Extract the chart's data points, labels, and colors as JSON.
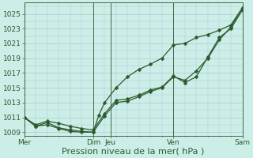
{
  "bg_color": "#cceee8",
  "grid_color": "#aacccc",
  "line_color": "#2d5a2d",
  "marker_color": "#2d5a2d",
  "xlabel": "Pression niveau de la mer( hPa )",
  "xlabel_fontsize": 8,
  "ylim": [
    1008.5,
    1026.5
  ],
  "yticks": [
    1009,
    1011,
    1013,
    1015,
    1017,
    1019,
    1021,
    1023,
    1025
  ],
  "ytick_fontsize": 6.5,
  "xtick_labels": [
    "Mer",
    "Dim",
    "Jeu",
    "Ven",
    "Sam"
  ],
  "xtick_positions": [
    0,
    6,
    7.5,
    13,
    19
  ],
  "x_total": 19,
  "series1_x": [
    0,
    1,
    2,
    3,
    4,
    5,
    6,
    7,
    8,
    9,
    10,
    11,
    12,
    13,
    14,
    15,
    16,
    17,
    18,
    19
  ],
  "series1_y": [
    1011.0,
    1010.0,
    1010.5,
    1010.2,
    1009.8,
    1009.5,
    1009.3,
    1011.5,
    1013.3,
    1013.5,
    1014.0,
    1014.7,
    1015.1,
    1016.6,
    1015.7,
    1016.5,
    1019.2,
    1021.8,
    1023.0,
    1025.5
  ],
  "series2_x": [
    0,
    1,
    2,
    3,
    4,
    5,
    6,
    7,
    8,
    9,
    10,
    11,
    12,
    13,
    14,
    15,
    16,
    17,
    18,
    19
  ],
  "series2_y": [
    1011.0,
    1009.8,
    1010.3,
    1009.6,
    1009.3,
    1009.1,
    1009.0,
    1011.2,
    1013.0,
    1013.2,
    1013.8,
    1014.5,
    1015.0,
    1016.5,
    1016.0,
    1017.3,
    1019.0,
    1021.5,
    1023.2,
    1025.8
  ],
  "series3_x": [
    0,
    1,
    2,
    3,
    4,
    5,
    6,
    6.5,
    7,
    8,
    9,
    10,
    11,
    12,
    13,
    14,
    15,
    16,
    17,
    18,
    19
  ],
  "series3_y": [
    1011.0,
    1009.8,
    1010.0,
    1009.5,
    1009.1,
    1009.0,
    1009.0,
    1011.3,
    1013.0,
    1015.0,
    1016.5,
    1017.5,
    1018.2,
    1019.0,
    1020.8,
    1021.0,
    1021.8,
    1022.2,
    1022.8,
    1023.5,
    1025.8
  ],
  "vline_positions": [
    0,
    6,
    7.5,
    13,
    19
  ],
  "vline_color": "#446644",
  "tick_color": "#2d5a2d"
}
